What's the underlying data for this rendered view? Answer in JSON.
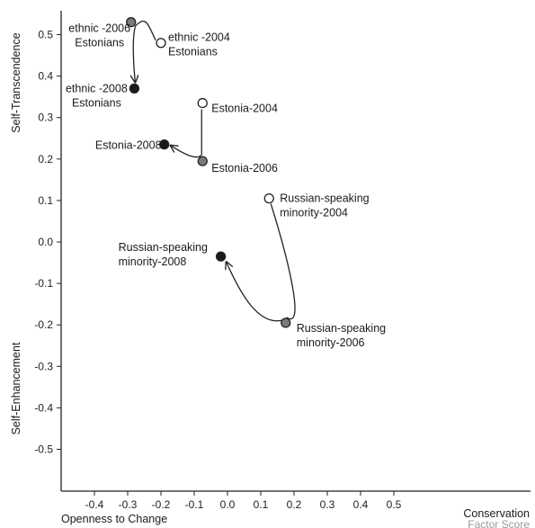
{
  "chart_data": {
    "type": "scatter",
    "xlabel_left": "Openness to Change",
    "xlabel_right": "Conservation",
    "x_unit": "Factor Score",
    "ylabel_top": "Self-Transcendence",
    "ylabel_bottom": "Self-Enhancement",
    "xlim": [
      -0.5,
      0.55
    ],
    "ylim": [
      -0.55,
      0.56
    ],
    "x_ticks": [
      -0.4,
      -0.3,
      -0.2,
      -0.1,
      0.0,
      0.1,
      0.2,
      0.3,
      0.4,
      0.5
    ],
    "x_tick_labels": [
      "-0.4",
      "-0.3",
      "-0.2",
      "-0.1",
      "0.0",
      "0.1",
      "0.2",
      "0.3",
      "0.4",
      "0.5"
    ],
    "y_ticks": [
      0.5,
      0.4,
      0.3,
      0.2,
      0.1,
      0.0,
      -0.1,
      -0.2,
      -0.3,
      -0.4,
      -0.5
    ],
    "y_tick_labels": [
      "0.5",
      "0.4",
      "0.3",
      "0.2",
      "0.1",
      "0.0",
      "-0.1",
      "-0.2",
      "-0.3",
      "-0.4",
      "-0.5"
    ],
    "colors": {
      "2004": "#ffffff",
      "2006": "#7a7a7a",
      "2008": "#1a1a1a",
      "stroke": "#222222"
    },
    "groups": [
      {
        "points": [
          {
            "year": "2004",
            "x": -0.2,
            "y": 0.48,
            "label": [
              "ethnic -2004",
              "Estonians"
            ]
          },
          {
            "year": "2006",
            "x": -0.29,
            "y": 0.53,
            "label": [
              "ethnic -2006",
              "Estonians"
            ]
          },
          {
            "year": "2008",
            "x": -0.28,
            "y": 0.37,
            "label": [
              "ethnic -2008",
              "Estonians"
            ]
          }
        ]
      },
      {
        "points": [
          {
            "year": "2004",
            "x": -0.075,
            "y": 0.335,
            "label": [
              "Estonia-2004"
            ]
          },
          {
            "year": "2006",
            "x": -0.075,
            "y": 0.195,
            "label": [
              "Estonia-2006"
            ]
          },
          {
            "year": "2008",
            "x": -0.19,
            "y": 0.235,
            "label": [
              "Estonia-2008"
            ]
          }
        ]
      },
      {
        "points": [
          {
            "year": "2004",
            "x": 0.125,
            "y": 0.105,
            "label": [
              "Russian-speaking",
              "minority-2004"
            ]
          },
          {
            "year": "2006",
            "x": 0.175,
            "y": -0.195,
            "label": [
              "Russian-speaking",
              "minority-2006"
            ]
          },
          {
            "year": "2008",
            "x": -0.02,
            "y": -0.035,
            "label": [
              "Russian-speaking",
              "minority-2008"
            ]
          }
        ]
      }
    ]
  }
}
